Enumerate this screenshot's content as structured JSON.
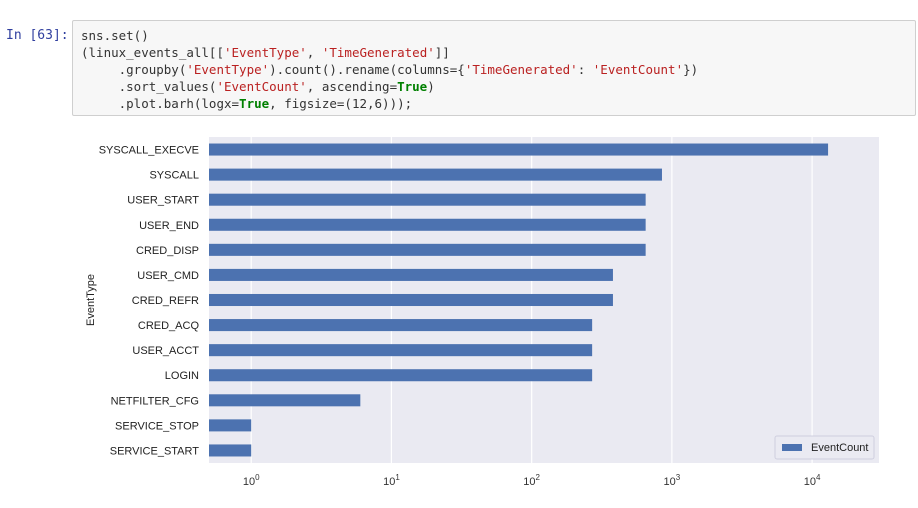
{
  "cell": {
    "prompt": "In [63]:",
    "code_lines": [
      [
        {
          "t": "sns.set()",
          "c": ""
        }
      ],
      [
        {
          "t": "(linux_events_all[[",
          "c": ""
        },
        {
          "t": "'EventType'",
          "c": "str"
        },
        {
          "t": ", ",
          "c": ""
        },
        {
          "t": "'TimeGenerated'",
          "c": "str"
        },
        {
          "t": "]]",
          "c": ""
        }
      ],
      [
        {
          "t": "     .groupby(",
          "c": ""
        },
        {
          "t": "'EventType'",
          "c": "str"
        },
        {
          "t": ").count().rename(columns={",
          "c": ""
        },
        {
          "t": "'TimeGenerated'",
          "c": "str"
        },
        {
          "t": ": ",
          "c": ""
        },
        {
          "t": "'EventCount'",
          "c": "str"
        },
        {
          "t": "})",
          "c": ""
        }
      ],
      [
        {
          "t": "     .sort_values(",
          "c": ""
        },
        {
          "t": "'EventCount'",
          "c": "str"
        },
        {
          "t": ", ascending=",
          "c": ""
        },
        {
          "t": "True",
          "c": "kw"
        },
        {
          "t": ")",
          "c": ""
        }
      ],
      [
        {
          "t": "     .plot.barh(logx=",
          "c": ""
        },
        {
          "t": "True",
          "c": "kw"
        },
        {
          "t": ", figsize=(12,6)));",
          "c": ""
        }
      ]
    ]
  },
  "chart_data": {
    "type": "bar",
    "orientation": "horizontal",
    "log_x": true,
    "categories": [
      "SYSCALL_EXECVE",
      "SYSCALL",
      "USER_START",
      "USER_END",
      "CRED_DISP",
      "USER_CMD",
      "CRED_REFR",
      "CRED_ACQ",
      "USER_ACCT",
      "LOGIN",
      "NETFILTER_CFG",
      "SERVICE_STOP",
      "SERVICE_START"
    ],
    "series": [
      {
        "name": "EventCount",
        "values": [
          13000,
          850,
          650,
          650,
          650,
          380,
          380,
          270,
          270,
          270,
          6,
          1,
          1
        ]
      }
    ],
    "ylabel": "EventType",
    "xlim": [
      0.5,
      30000
    ],
    "x_ticks": [
      {
        "base": "10",
        "exp": "0",
        "v": 1
      },
      {
        "base": "10",
        "exp": "1",
        "v": 10
      },
      {
        "base": "10",
        "exp": "2",
        "v": 100
      },
      {
        "base": "10",
        "exp": "3",
        "v": 1000
      },
      {
        "base": "10",
        "exp": "4",
        "v": 10000
      }
    ],
    "grid": true,
    "legend_position": "lower-right",
    "bar_color": "#4c72b0",
    "background": "#eaeaf2"
  }
}
